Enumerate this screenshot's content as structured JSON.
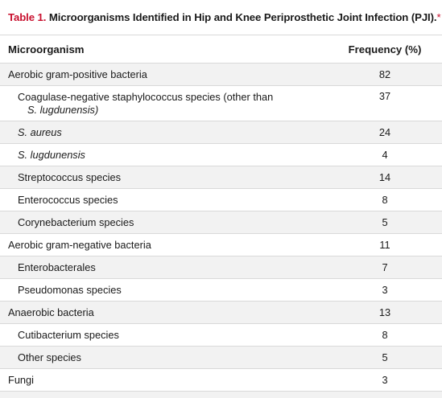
{
  "caption": {
    "label": "Table 1.",
    "title": "Microorganisms Identified in Hip and Knee Periprosthetic Joint Infection (PJI).",
    "footnote_marker": "*"
  },
  "columns": {
    "name": "Microorganism",
    "frequency": "Frequency (%)"
  },
  "rows": [
    {
      "name": "Aerobic gram-positive bacteria",
      "value": "82"
    },
    {
      "name_line1": "Coagulase-negative staphylococcus species (other than",
      "name_line2": "S. lugdunensis)",
      "value": "37"
    },
    {
      "name": "S. aureus",
      "value": "24"
    },
    {
      "name": "S. lugdunensis",
      "value": "4"
    },
    {
      "name": "Streptococcus species",
      "value": "14"
    },
    {
      "name": "Enterococcus species",
      "value": "8"
    },
    {
      "name": "Corynebacterium species",
      "value": "5"
    },
    {
      "name": "Aerobic gram-negative bacteria",
      "value": "11"
    },
    {
      "name": "Enterobacterales",
      "value": "7"
    },
    {
      "name": "Pseudomonas species",
      "value": "3"
    },
    {
      "name": "Anaerobic bacteria",
      "value": "13"
    },
    {
      "name": "Cutibacterium species",
      "value": "8"
    },
    {
      "name": "Other species",
      "value": "5"
    },
    {
      "name": "Fungi",
      "value": "3"
    }
  ]
}
